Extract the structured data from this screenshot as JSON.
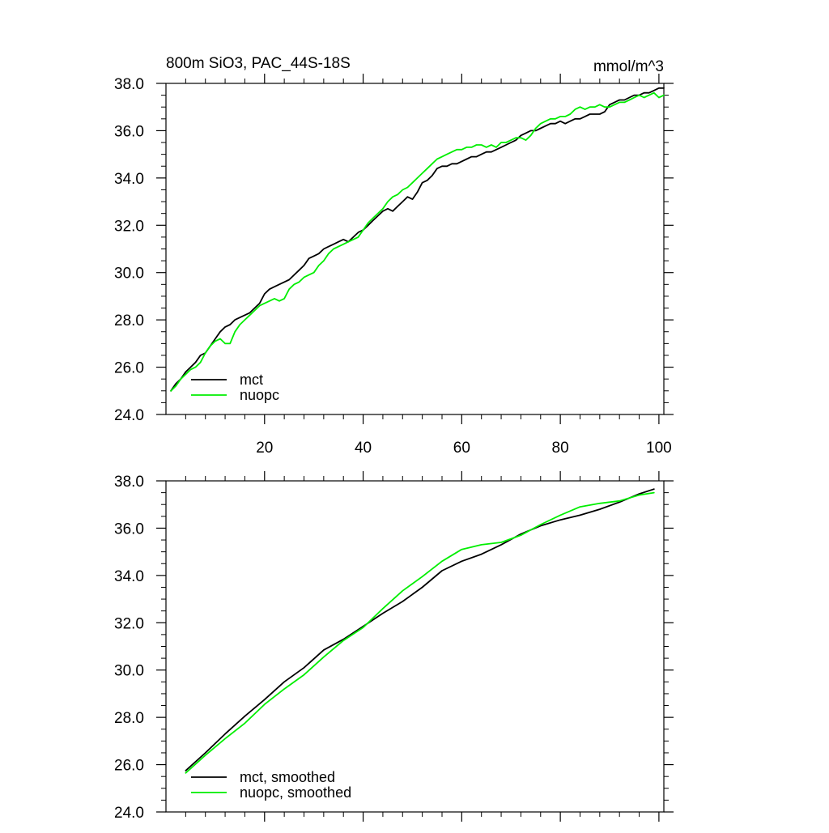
{
  "figure": {
    "title_left": "800m SiO3, PAC_44S-18S",
    "title_right": "mmol/m^3"
  },
  "colors": {
    "mct": "#000000",
    "nuopc": "#00ee00",
    "axis": "#000000",
    "background": "#ffffff"
  },
  "chart_data": [
    {
      "type": "line",
      "title": "800m SiO3, PAC_44S-18S",
      "units": "mmol/m^3",
      "xlim": [
        0,
        101
      ],
      "ylim": [
        24.0,
        38.0
      ],
      "x_ticks": [
        20,
        40,
        60,
        80,
        100
      ],
      "x_tick_labels": [
        "20",
        "40",
        "60",
        "80",
        "100"
      ],
      "y_ticks": [
        24.0,
        26.0,
        28.0,
        30.0,
        32.0,
        34.0,
        36.0,
        38.0
      ],
      "y_tick_labels": [
        "24.0",
        "26.0",
        "28.0",
        "30.0",
        "32.0",
        "34.0",
        "36.0",
        "38.0"
      ],
      "grid": false,
      "legend_position": "bottom-left",
      "series": [
        {
          "name": "mct",
          "color": "#000000",
          "x": [
            1,
            2,
            3,
            4,
            5,
            6,
            7,
            8,
            9,
            10,
            11,
            12,
            13,
            14,
            15,
            16,
            17,
            18,
            19,
            20,
            21,
            22,
            23,
            24,
            25,
            26,
            27,
            28,
            29,
            30,
            31,
            32,
            33,
            34,
            35,
            36,
            37,
            38,
            39,
            40,
            41,
            42,
            43,
            44,
            45,
            46,
            47,
            48,
            49,
            50,
            51,
            52,
            53,
            54,
            55,
            56,
            57,
            58,
            59,
            60,
            61,
            62,
            63,
            64,
            65,
            66,
            67,
            68,
            69,
            70,
            71,
            72,
            73,
            74,
            75,
            76,
            77,
            78,
            79,
            80,
            81,
            82,
            83,
            84,
            85,
            86,
            87,
            88,
            89,
            90,
            91,
            92,
            93,
            94,
            95,
            96,
            97,
            98,
            99,
            100,
            101
          ],
          "y": [
            25.0,
            25.3,
            25.5,
            25.8,
            26.0,
            26.2,
            26.5,
            26.6,
            26.9,
            27.2,
            27.5,
            27.7,
            27.8,
            28.0,
            28.1,
            28.2,
            28.3,
            28.5,
            28.7,
            29.1,
            29.3,
            29.4,
            29.5,
            29.6,
            29.7,
            29.9,
            30.1,
            30.3,
            30.6,
            30.7,
            30.8,
            31.0,
            31.1,
            31.2,
            31.3,
            31.4,
            31.3,
            31.5,
            31.7,
            31.8,
            32.0,
            32.2,
            32.4,
            32.6,
            32.7,
            32.6,
            32.8,
            33.0,
            33.2,
            33.1,
            33.4,
            33.8,
            33.9,
            34.1,
            34.4,
            34.5,
            34.5,
            34.6,
            34.6,
            34.7,
            34.8,
            34.9,
            34.9,
            35.0,
            35.1,
            35.1,
            35.2,
            35.3,
            35.4,
            35.5,
            35.6,
            35.8,
            35.9,
            36.0,
            36.0,
            36.1,
            36.2,
            36.3,
            36.3,
            36.4,
            36.3,
            36.4,
            36.5,
            36.5,
            36.6,
            36.7,
            36.7,
            36.7,
            36.8,
            37.1,
            37.2,
            37.3,
            37.3,
            37.4,
            37.5,
            37.5,
            37.6,
            37.6,
            37.7,
            37.8,
            37.8
          ]
        },
        {
          "name": "nuopc",
          "color": "#00ee00",
          "x": [
            1,
            2,
            3,
            4,
            5,
            6,
            7,
            8,
            9,
            10,
            11,
            12,
            13,
            14,
            15,
            16,
            17,
            18,
            19,
            20,
            21,
            22,
            23,
            24,
            25,
            26,
            27,
            28,
            29,
            30,
            31,
            32,
            33,
            34,
            35,
            36,
            37,
            38,
            39,
            40,
            41,
            42,
            43,
            44,
            45,
            46,
            47,
            48,
            49,
            50,
            51,
            52,
            53,
            54,
            55,
            56,
            57,
            58,
            59,
            60,
            61,
            62,
            63,
            64,
            65,
            66,
            67,
            68,
            69,
            70,
            71,
            72,
            73,
            74,
            75,
            76,
            77,
            78,
            79,
            80,
            81,
            82,
            83,
            84,
            85,
            86,
            87,
            88,
            89,
            90,
            91,
            92,
            93,
            94,
            95,
            96,
            97,
            98,
            99,
            100,
            101
          ],
          "y": [
            25.0,
            25.2,
            25.5,
            25.7,
            25.9,
            26.0,
            26.2,
            26.6,
            26.9,
            27.1,
            27.2,
            27.0,
            27.0,
            27.5,
            27.8,
            28.0,
            28.2,
            28.4,
            28.6,
            28.7,
            28.8,
            28.9,
            28.8,
            28.9,
            29.3,
            29.5,
            29.6,
            29.8,
            29.9,
            30.0,
            30.3,
            30.5,
            30.8,
            31.0,
            31.1,
            31.2,
            31.3,
            31.4,
            31.5,
            31.8,
            32.1,
            32.3,
            32.5,
            32.7,
            33.0,
            33.2,
            33.3,
            33.5,
            33.6,
            33.8,
            34.0,
            34.2,
            34.4,
            34.6,
            34.8,
            34.9,
            35.0,
            35.1,
            35.2,
            35.2,
            35.3,
            35.3,
            35.4,
            35.4,
            35.3,
            35.4,
            35.3,
            35.5,
            35.5,
            35.6,
            35.7,
            35.7,
            35.6,
            35.8,
            36.1,
            36.3,
            36.4,
            36.5,
            36.5,
            36.6,
            36.6,
            36.7,
            36.9,
            37.0,
            36.9,
            37.0,
            37.0,
            37.1,
            37.0,
            37.0,
            37.1,
            37.2,
            37.2,
            37.3,
            37.4,
            37.5,
            37.4,
            37.5,
            37.6,
            37.4,
            37.5
          ]
        }
      ]
    },
    {
      "type": "line",
      "title": "",
      "xlim": [
        0,
        101
      ],
      "ylim": [
        24.0,
        38.0
      ],
      "x_ticks": [
        20,
        40,
        60,
        80,
        100
      ],
      "x_tick_labels": [],
      "y_ticks": [
        24.0,
        26.0,
        28.0,
        30.0,
        32.0,
        34.0,
        36.0,
        38.0
      ],
      "y_tick_labels": [
        "24.0",
        "26.0",
        "28.0",
        "30.0",
        "32.0",
        "34.0",
        "36.0",
        "38.0"
      ],
      "grid": false,
      "legend_position": "bottom-left",
      "series": [
        {
          "name": "mct, smoothed",
          "color": "#000000",
          "x": [
            4,
            8,
            12,
            16,
            20,
            24,
            28,
            32,
            36,
            40,
            44,
            48,
            52,
            56,
            60,
            64,
            68,
            72,
            76,
            80,
            84,
            88,
            92,
            96,
            99
          ],
          "y": [
            25.75,
            26.5,
            27.3,
            28.05,
            28.75,
            29.5,
            30.1,
            30.85,
            31.3,
            31.85,
            32.4,
            32.9,
            33.5,
            34.2,
            34.6,
            34.9,
            35.3,
            35.75,
            36.1,
            36.35,
            36.55,
            36.8,
            37.1,
            37.45,
            37.65
          ]
        },
        {
          "name": "nuopc, smoothed",
          "color": "#00ee00",
          "x": [
            4,
            8,
            12,
            16,
            20,
            24,
            28,
            32,
            36,
            40,
            44,
            48,
            52,
            56,
            60,
            64,
            68,
            72,
            76,
            80,
            84,
            88,
            92,
            96,
            99
          ],
          "y": [
            25.65,
            26.4,
            27.1,
            27.75,
            28.55,
            29.2,
            29.8,
            30.55,
            31.25,
            31.8,
            32.6,
            33.35,
            33.95,
            34.6,
            35.1,
            35.3,
            35.4,
            35.7,
            36.15,
            36.55,
            36.9,
            37.05,
            37.15,
            37.4,
            37.5
          ]
        }
      ]
    }
  ]
}
